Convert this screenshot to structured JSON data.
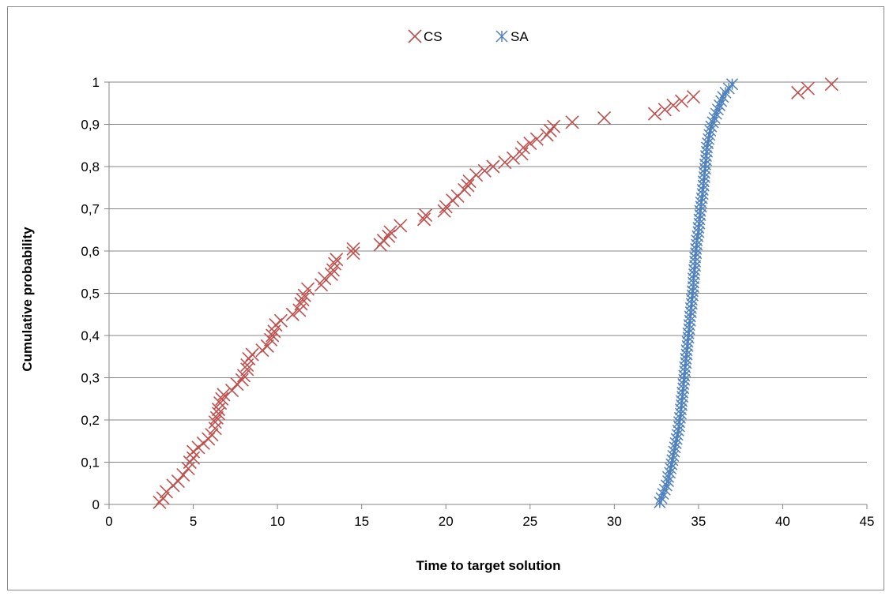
{
  "chart_data": {
    "type": "scatter",
    "xlabel": "Time to target solution",
    "ylabel": "Cumulative probability",
    "xlim": [
      0,
      45
    ],
    "ylim": [
      0,
      1
    ],
    "x_ticks": [
      0,
      5,
      10,
      15,
      20,
      25,
      30,
      35,
      40,
      45
    ],
    "x_tick_labels": [
      "0",
      "5",
      "10",
      "15",
      "20",
      "25",
      "30",
      "35",
      "40",
      "45"
    ],
    "y_ticks": [
      0,
      0.1,
      0.2,
      0.3,
      0.4,
      0.5,
      0.6,
      0.7,
      0.8,
      0.9,
      1
    ],
    "y_tick_labels": [
      "0",
      "0,1",
      "0,2",
      "0,3",
      "0,4",
      "0,5",
      "0,6",
      "0,7",
      "0,8",
      "0,9",
      "1"
    ],
    "grid": "horizontal",
    "legend_position": "top",
    "series": [
      {
        "name": "CS",
        "color": "#c0504d",
        "marker": "x",
        "points": [
          [
            3.0,
            0.005
          ],
          [
            3.2,
            0.015
          ],
          [
            3.4,
            0.03
          ],
          [
            3.8,
            0.045
          ],
          [
            4.1,
            0.055
          ],
          [
            4.4,
            0.07
          ],
          [
            4.7,
            0.085
          ],
          [
            4.8,
            0.1
          ],
          [
            5.0,
            0.11
          ],
          [
            5.0,
            0.125
          ],
          [
            5.3,
            0.135
          ],
          [
            5.6,
            0.145
          ],
          [
            5.9,
            0.155
          ],
          [
            6.1,
            0.165
          ],
          [
            6.3,
            0.18
          ],
          [
            6.3,
            0.195
          ],
          [
            6.4,
            0.205
          ],
          [
            6.5,
            0.215
          ],
          [
            6.5,
            0.225
          ],
          [
            6.6,
            0.24
          ],
          [
            6.7,
            0.25
          ],
          [
            6.8,
            0.26
          ],
          [
            7.3,
            0.27
          ],
          [
            7.6,
            0.285
          ],
          [
            7.9,
            0.295
          ],
          [
            8.0,
            0.305
          ],
          [
            8.2,
            0.32
          ],
          [
            8.2,
            0.33
          ],
          [
            8.3,
            0.345
          ],
          [
            8.5,
            0.355
          ],
          [
            9.1,
            0.365
          ],
          [
            9.4,
            0.375
          ],
          [
            9.6,
            0.39
          ],
          [
            9.7,
            0.4
          ],
          [
            9.8,
            0.41
          ],
          [
            9.9,
            0.425
          ],
          [
            10.2,
            0.435
          ],
          [
            10.9,
            0.45
          ],
          [
            11.3,
            0.46
          ],
          [
            11.4,
            0.475
          ],
          [
            11.5,
            0.485
          ],
          [
            11.6,
            0.495
          ],
          [
            11.8,
            0.51
          ],
          [
            12.6,
            0.52
          ],
          [
            12.8,
            0.535
          ],
          [
            13.2,
            0.545
          ],
          [
            13.3,
            0.555
          ],
          [
            13.4,
            0.57
          ],
          [
            13.5,
            0.58
          ],
          [
            14.5,
            0.595
          ],
          [
            14.5,
            0.605
          ],
          [
            16.1,
            0.615
          ],
          [
            16.3,
            0.625
          ],
          [
            16.6,
            0.635
          ],
          [
            16.7,
            0.645
          ],
          [
            17.3,
            0.66
          ],
          [
            18.7,
            0.675
          ],
          [
            18.8,
            0.685
          ],
          [
            19.9,
            0.695
          ],
          [
            20.0,
            0.705
          ],
          [
            20.4,
            0.72
          ],
          [
            20.7,
            0.73
          ],
          [
            21.1,
            0.745
          ],
          [
            21.3,
            0.755
          ],
          [
            21.4,
            0.765
          ],
          [
            21.8,
            0.78
          ],
          [
            22.3,
            0.79
          ],
          [
            22.8,
            0.8
          ],
          [
            23.5,
            0.81
          ],
          [
            24.0,
            0.82
          ],
          [
            24.5,
            0.83
          ],
          [
            24.6,
            0.845
          ],
          [
            25.0,
            0.855
          ],
          [
            25.4,
            0.865
          ],
          [
            26.0,
            0.875
          ],
          [
            26.2,
            0.885
          ],
          [
            26.4,
            0.895
          ],
          [
            27.5,
            0.905
          ],
          [
            29.4,
            0.915
          ],
          [
            32.4,
            0.925
          ],
          [
            33.0,
            0.935
          ],
          [
            33.5,
            0.945
          ],
          [
            34.0,
            0.955
          ],
          [
            34.7,
            0.965
          ],
          [
            40.9,
            0.975
          ],
          [
            41.5,
            0.985
          ],
          [
            42.9,
            0.995
          ]
        ]
      },
      {
        "name": "SA",
        "color": "#4f81bd",
        "marker": "asterisk",
        "points": [
          [
            32.7,
            0.005
          ],
          [
            32.8,
            0.015
          ],
          [
            32.9,
            0.025
          ],
          [
            33.0,
            0.035
          ],
          [
            33.1,
            0.045
          ],
          [
            33.2,
            0.055
          ],
          [
            33.2,
            0.065
          ],
          [
            33.3,
            0.075
          ],
          [
            33.35,
            0.085
          ],
          [
            33.4,
            0.095
          ],
          [
            33.45,
            0.105
          ],
          [
            33.5,
            0.115
          ],
          [
            33.55,
            0.125
          ],
          [
            33.6,
            0.135
          ],
          [
            33.65,
            0.145
          ],
          [
            33.7,
            0.155
          ],
          [
            33.75,
            0.165
          ],
          [
            33.8,
            0.175
          ],
          [
            33.85,
            0.185
          ],
          [
            33.85,
            0.195
          ],
          [
            33.9,
            0.205
          ],
          [
            33.95,
            0.215
          ],
          [
            33.95,
            0.225
          ],
          [
            34.0,
            0.235
          ],
          [
            34.0,
            0.245
          ],
          [
            34.05,
            0.255
          ],
          [
            34.05,
            0.265
          ],
          [
            34.1,
            0.275
          ],
          [
            34.1,
            0.285
          ],
          [
            34.15,
            0.295
          ],
          [
            34.15,
            0.305
          ],
          [
            34.2,
            0.315
          ],
          [
            34.2,
            0.325
          ],
          [
            34.25,
            0.335
          ],
          [
            34.25,
            0.345
          ],
          [
            34.3,
            0.355
          ],
          [
            34.3,
            0.365
          ],
          [
            34.35,
            0.375
          ],
          [
            34.35,
            0.385
          ],
          [
            34.4,
            0.395
          ],
          [
            34.4,
            0.405
          ],
          [
            34.45,
            0.415
          ],
          [
            34.45,
            0.425
          ],
          [
            34.5,
            0.435
          ],
          [
            34.5,
            0.445
          ],
          [
            34.55,
            0.455
          ],
          [
            34.55,
            0.465
          ],
          [
            34.6,
            0.475
          ],
          [
            34.6,
            0.485
          ],
          [
            34.65,
            0.495
          ],
          [
            34.65,
            0.505
          ],
          [
            34.7,
            0.515
          ],
          [
            34.7,
            0.525
          ],
          [
            34.7,
            0.535
          ],
          [
            34.75,
            0.545
          ],
          [
            34.75,
            0.555
          ],
          [
            34.8,
            0.565
          ],
          [
            34.8,
            0.575
          ],
          [
            34.8,
            0.585
          ],
          [
            34.85,
            0.595
          ],
          [
            34.85,
            0.605
          ],
          [
            34.9,
            0.615
          ],
          [
            34.9,
            0.625
          ],
          [
            34.95,
            0.635
          ],
          [
            35.0,
            0.645
          ],
          [
            35.0,
            0.655
          ],
          [
            35.05,
            0.665
          ],
          [
            35.05,
            0.675
          ],
          [
            35.1,
            0.685
          ],
          [
            35.1,
            0.695
          ],
          [
            35.15,
            0.705
          ],
          [
            35.15,
            0.715
          ],
          [
            35.2,
            0.725
          ],
          [
            35.25,
            0.735
          ],
          [
            35.25,
            0.745
          ],
          [
            35.3,
            0.755
          ],
          [
            35.3,
            0.765
          ],
          [
            35.35,
            0.775
          ],
          [
            35.35,
            0.785
          ],
          [
            35.4,
            0.795
          ],
          [
            35.4,
            0.805
          ],
          [
            35.45,
            0.815
          ],
          [
            35.45,
            0.825
          ],
          [
            35.5,
            0.835
          ],
          [
            35.5,
            0.845
          ],
          [
            35.55,
            0.855
          ],
          [
            35.6,
            0.865
          ],
          [
            35.65,
            0.875
          ],
          [
            35.7,
            0.885
          ],
          [
            35.75,
            0.895
          ],
          [
            35.85,
            0.905
          ],
          [
            35.95,
            0.915
          ],
          [
            36.05,
            0.925
          ],
          [
            36.15,
            0.935
          ],
          [
            36.25,
            0.945
          ],
          [
            36.35,
            0.955
          ],
          [
            36.45,
            0.965
          ],
          [
            36.6,
            0.975
          ],
          [
            36.8,
            0.985
          ],
          [
            37.0,
            0.995
          ]
        ]
      }
    ]
  }
}
